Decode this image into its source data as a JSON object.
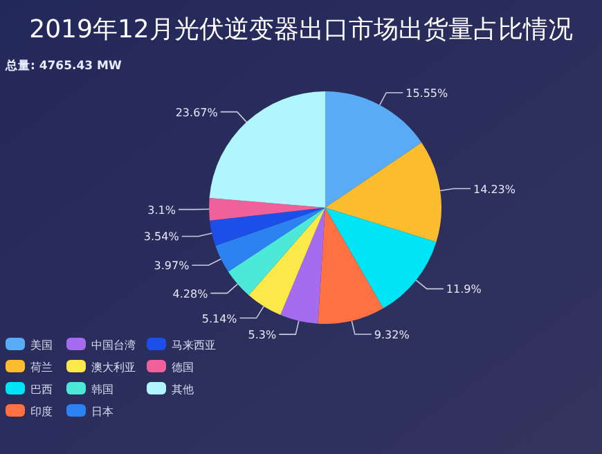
{
  "chart_data": {
    "type": "pie",
    "title": "2019年12月光伏逆变器出口市场出货量占比情况",
    "subtitle": "总量: 4765.43 MW",
    "categories": [
      "美国",
      "荷兰",
      "巴西",
      "印度",
      "中国台湾",
      "澳大利亚",
      "韩国",
      "日本",
      "马来西亚",
      "德国",
      "其他"
    ],
    "values": [
      15.55,
      14.23,
      11.9,
      9.32,
      5.3,
      5.14,
      4.28,
      3.97,
      3.54,
      3.1,
      23.67
    ],
    "value_labels": [
      "15.55%",
      "14.23%",
      "11.9%",
      "9.32%",
      "5.3%",
      "5.14%",
      "4.28%",
      "3.97%",
      "3.54%",
      "3.1%",
      "23.67%"
    ],
    "colors": [
      "#5aabf5",
      "#fbbd2e",
      "#00e5f5",
      "#ff7043",
      "#a56cf0",
      "#fbe94a",
      "#4ce8d8",
      "#2c82f0",
      "#1c4fe8",
      "#f0609a",
      "#b0f6fc"
    ],
    "legend": "bottom left"
  }
}
